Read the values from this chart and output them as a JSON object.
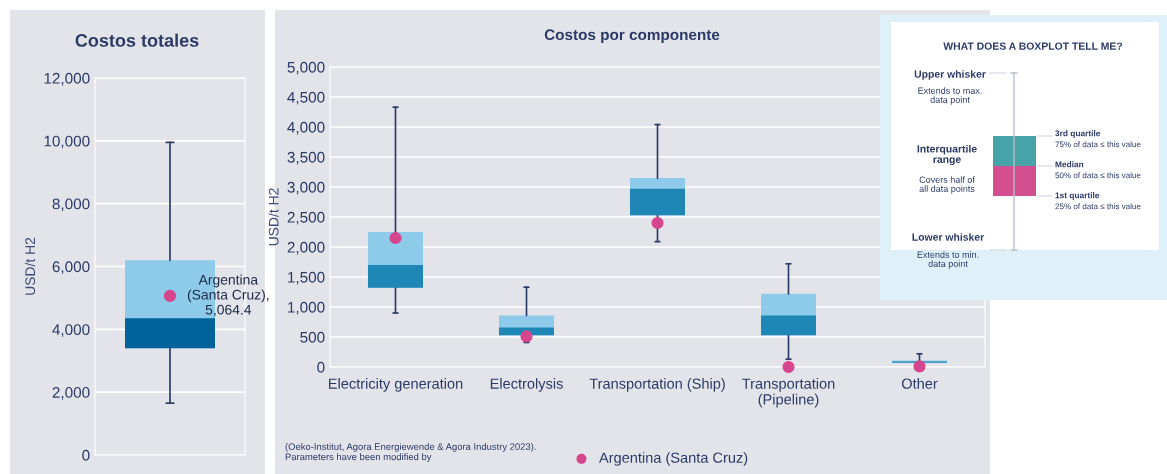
{
  "chart_data": [
    {
      "type": "box",
      "title": "Costos totales",
      "ylabel": "USD/t H2",
      "categories": [
        null
      ],
      "series": [
        {
          "type": "box",
          "color": "#00629b",
          "colors": [
            "#8ecbea"
          ],
          "boxes": [
            {
              "low": 1650,
              "q1": 3400,
              "median": 4350,
              "q3": 6200,
              "high": 9950
            }
          ]
        },
        {
          "type": "scatter",
          "color": "#d6468f",
          "values": [
            5064.4
          ],
          "value_labels": [
            "Argentina\n(Santa Cruz),\n5,064.4"
          ]
        }
      ],
      "ylim": [
        0,
        12000
      ],
      "yticks": [
        {
          "value": 0,
          "label": "0"
        },
        {
          "value": 2000,
          "label": "2,000"
        },
        {
          "value": 4000,
          "label": "4,000"
        },
        {
          "value": 6000,
          "label": "6,000"
        },
        {
          "value": 8000,
          "label": "8,000"
        },
        {
          "value": 10000,
          "label": "10,000"
        },
        {
          "value": 12000,
          "label": "12,000"
        }
      ],
      "grid": "y"
    },
    {
      "type": "box",
      "title": "Costos por componente",
      "ylabel": "USD/t H2",
      "categories": [
        "Electricity generation",
        "Electrolysis",
        "Transportation (Ship)",
        "Transportation\n(Pipeline)",
        "Other"
      ],
      "series": [
        {
          "type": "box",
          "color": "#1f87b6",
          "colors": [
            "#8ecbea",
            "#8ecbea",
            "#8ecbea",
            "#8ecbea",
            "#8ecbea"
          ],
          "boxes": [
            {
              "low": 900,
              "q1": 1320,
              "median": 1700,
              "q3": 2250,
              "high": 4330
            },
            {
              "low": 410,
              "q1": 530,
              "median": 660,
              "q3": 860,
              "high": 1330
            },
            {
              "low": 2090,
              "q1": 2530,
              "median": 2970,
              "q3": 3150,
              "high": 4040
            },
            {
              "low": 130,
              "q1": 530,
              "median": 860,
              "q3": 1220,
              "high": 1720
            },
            {
              "low": 20,
              "q1": 70,
              "median": 90,
              "q3": 110,
              "high": 220
            }
          ]
        },
        {
          "type": "scatter",
          "name": "Argentina (Santa Cruz)",
          "color": "#d6468f",
          "values": [
            2150,
            510,
            2400,
            0,
            10
          ]
        }
      ],
      "ylim": [
        0,
        5000
      ],
      "yticks": [
        {
          "value": 0,
          "label": "0"
        },
        {
          "value": 500,
          "label": "500"
        },
        {
          "value": 1000,
          "label": "1,000"
        },
        {
          "value": 1500,
          "label": "1,500"
        },
        {
          "value": 2000,
          "label": "2,000"
        },
        {
          "value": 2500,
          "label": "2,500"
        },
        {
          "value": 3000,
          "label": "3,000"
        },
        {
          "value": 3500,
          "label": "3,500"
        },
        {
          "value": 4000,
          "label": "4,000"
        },
        {
          "value": 4500,
          "label": "4,500"
        },
        {
          "value": 5000,
          "label": "5,000"
        }
      ],
      "grid": "y",
      "legend": "bottom",
      "annotations": [
        "(Oeko-Institut, Agora Energiewende & Agora Industry 2023).\nParameters have been modified by"
      ]
    },
    {
      "type": "other",
      "title": "WHAT DOES A BOXPLOT TELL ME?",
      "annotations": [
        "Upper whisker",
        "Extends to max.\ndata point",
        "Interquartile\nrange",
        "Covers half of\nall data points",
        "Lower whisker",
        "Extends to min.\ndata point",
        "3rd quartile",
        "75% of data ≤ this value",
        "Median",
        "50% of data ≤ this value",
        "1st quartile",
        "25% of data ≤ this value"
      ]
    }
  ]
}
